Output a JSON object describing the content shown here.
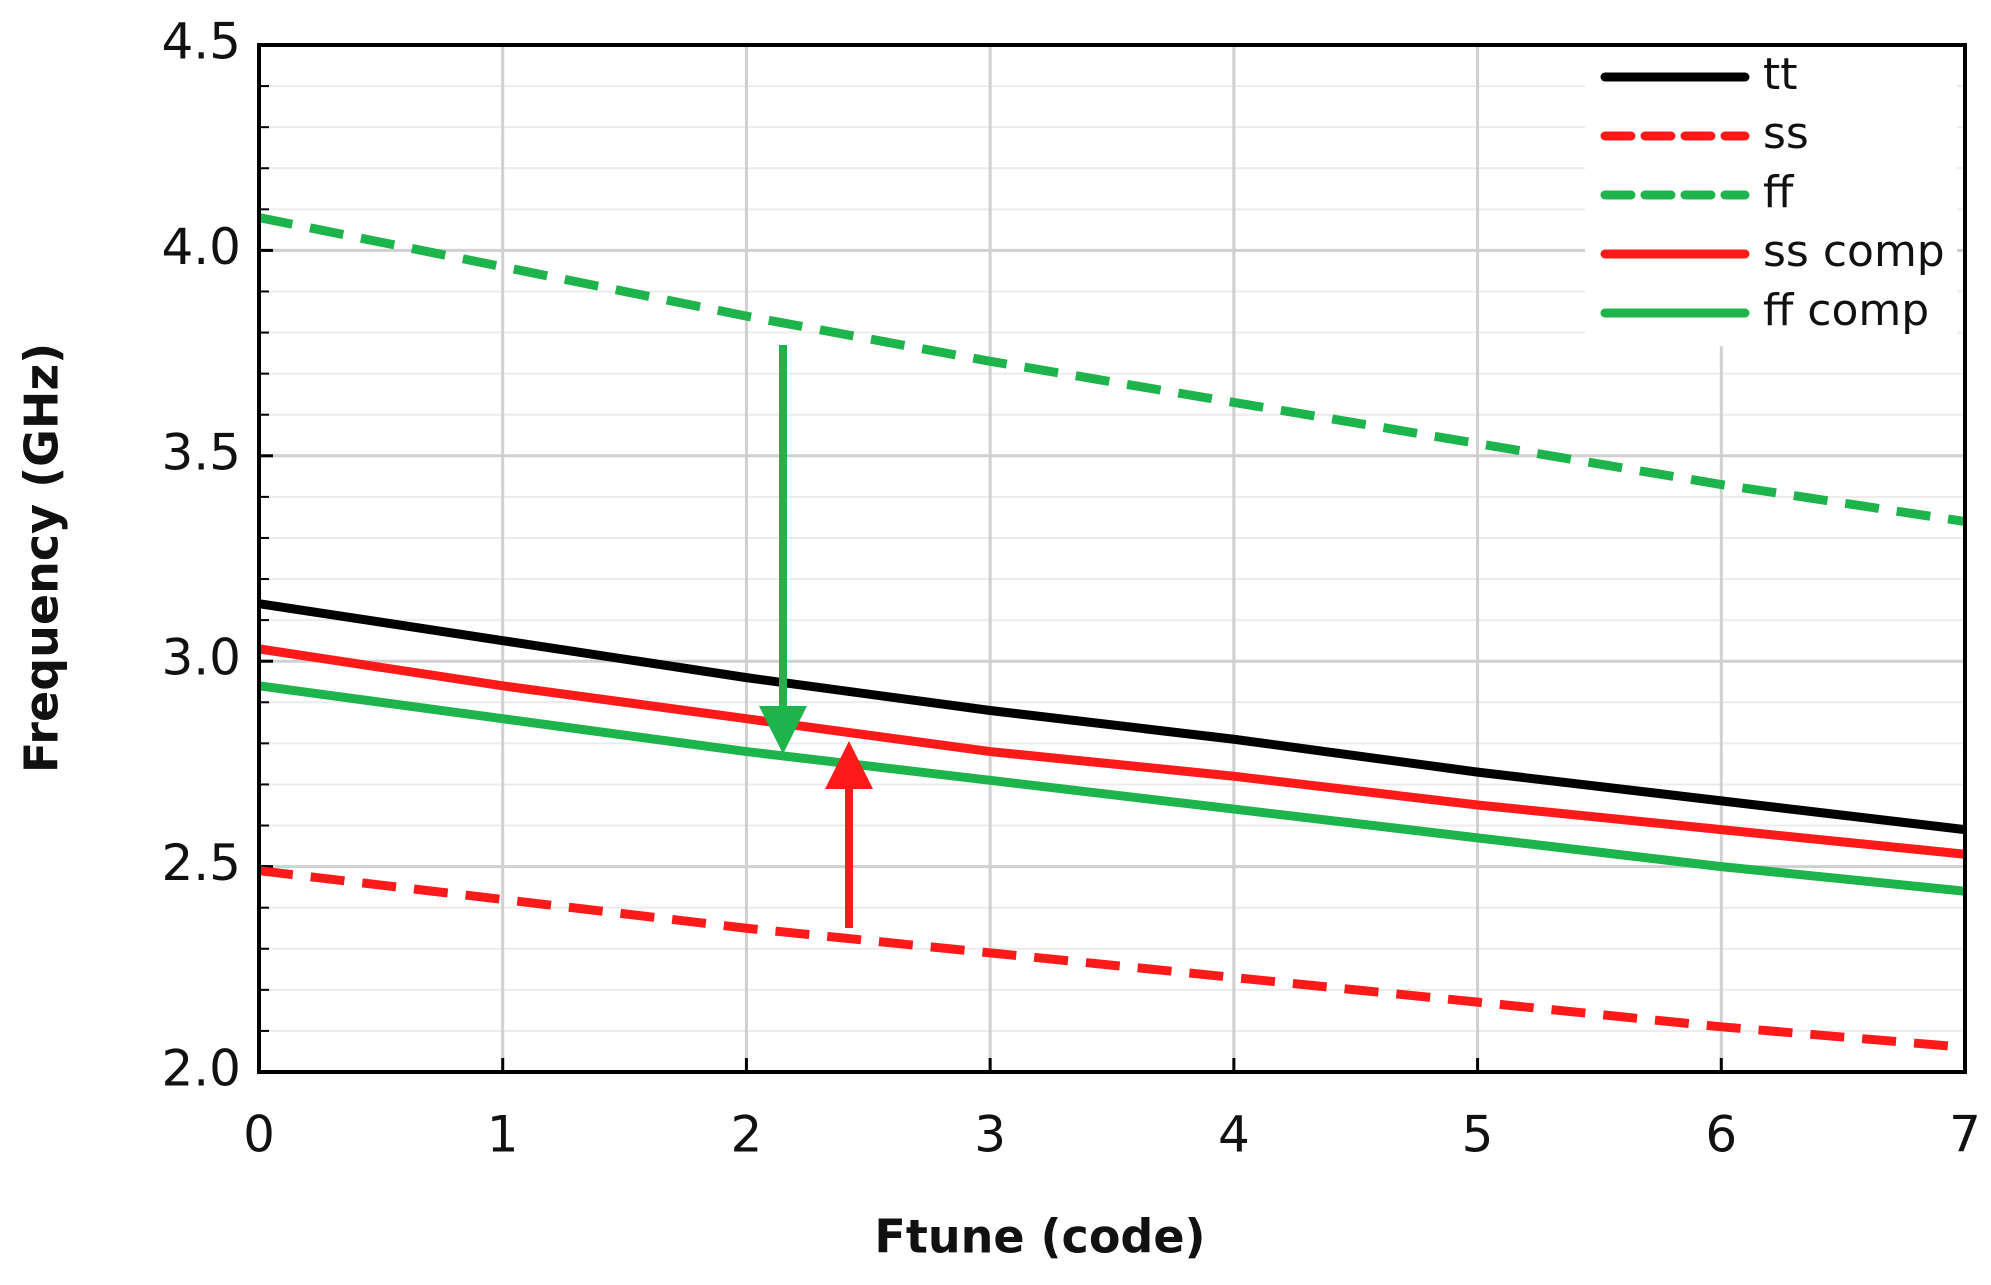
{
  "chart_data": {
    "type": "line",
    "x_label": "Ftune (code)",
    "y_label": "Frequency (GHz)",
    "x": [
      0,
      1,
      2,
      3,
      4,
      5,
      6,
      7
    ],
    "series": [
      {
        "name": "tt",
        "color": "#000000",
        "line_style": "solid",
        "values": [
          3.14,
          3.05,
          2.96,
          2.88,
          2.81,
          2.73,
          2.66,
          2.59
        ]
      },
      {
        "name": "ss",
        "color": "#ff1a1a",
        "line_style": "dashed",
        "values": [
          2.49,
          2.42,
          2.35,
          2.29,
          2.23,
          2.17,
          2.11,
          2.06
        ]
      },
      {
        "name": "ff",
        "color": "#1db44b",
        "line_style": "dashed",
        "values": [
          4.08,
          3.96,
          3.84,
          3.73,
          3.63,
          3.53,
          3.43,
          3.34
        ]
      },
      {
        "name": "ss comp",
        "color": "#ff1a1a",
        "line_style": "solid",
        "values": [
          3.03,
          2.94,
          2.86,
          2.78,
          2.72,
          2.65,
          2.59,
          2.53
        ]
      },
      {
        "name": "ff comp",
        "color": "#1db44b",
        "line_style": "solid",
        "values": [
          2.94,
          2.86,
          2.78,
          2.71,
          2.64,
          2.57,
          2.5,
          2.44
        ]
      }
    ],
    "xlim": [
      0,
      7
    ],
    "xticks": [
      0,
      1,
      2,
      3,
      4,
      5,
      6,
      7
    ],
    "ylim": [
      2,
      4.5
    ],
    "yticks": [
      {
        "value": 2,
        "label": "2.0"
      },
      2.5,
      {
        "value": 3,
        "label": "3.0"
      },
      3.5,
      {
        "value": 4,
        "label": "4.0"
      },
      4.5
    ],
    "grid": true,
    "legend": "upper right"
  }
}
